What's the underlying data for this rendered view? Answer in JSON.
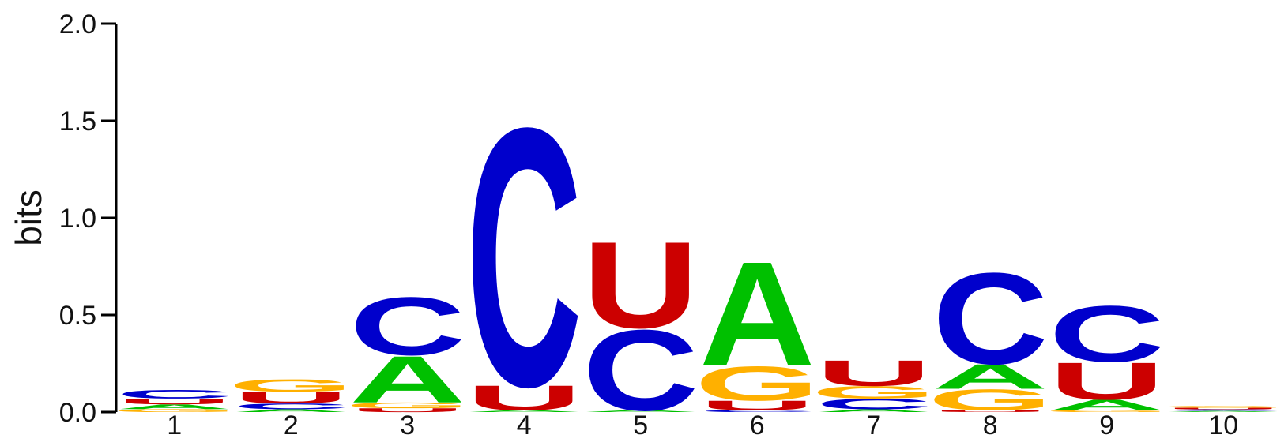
{
  "chart_data": {
    "type": "sequence-logo",
    "ylabel": "bits",
    "ylim": [
      0,
      2
    ],
    "yticks": [
      "0.0",
      "0.5",
      "1.0",
      "1.5",
      "2.0"
    ],
    "ytick_values": [
      0,
      0.5,
      1,
      1.5,
      2
    ],
    "alphabet_colors": {
      "A": "#00c000",
      "C": "#0000cc",
      "G": "#ffb000",
      "U": "#cc0000"
    },
    "positions": [
      {
        "label": "1",
        "stack": [
          {
            "letter": "G",
            "height": 0.015
          },
          {
            "letter": "A",
            "height": 0.025
          },
          {
            "letter": "U",
            "height": 0.03
          },
          {
            "letter": "C",
            "height": 0.045
          }
        ]
      },
      {
        "label": "2",
        "stack": [
          {
            "letter": "A",
            "height": 0.015
          },
          {
            "letter": "C",
            "height": 0.03
          },
          {
            "letter": "U",
            "height": 0.06
          },
          {
            "letter": "G",
            "height": 0.065
          }
        ]
      },
      {
        "label": "3",
        "stack": [
          {
            "letter": "U",
            "height": 0.02
          },
          {
            "letter": "G",
            "height": 0.03
          },
          {
            "letter": "A",
            "height": 0.245
          },
          {
            "letter": "C",
            "height": 0.305
          }
        ]
      },
      {
        "label": "4",
        "stack": [
          {
            "letter": "A",
            "height": 0.01
          },
          {
            "letter": "U",
            "height": 0.13
          },
          {
            "letter": "C",
            "height": 1.36
          }
        ]
      },
      {
        "label": "5",
        "stack": [
          {
            "letter": "A",
            "height": 0.01
          },
          {
            "letter": "C",
            "height": 0.425
          },
          {
            "letter": "U",
            "height": 0.455
          }
        ]
      },
      {
        "label": "6",
        "stack": [
          {
            "letter": "C",
            "height": 0.01
          },
          {
            "letter": "U",
            "height": 0.05
          },
          {
            "letter": "G",
            "height": 0.18
          },
          {
            "letter": "A",
            "height": 0.55
          }
        ]
      },
      {
        "label": "7",
        "stack": [
          {
            "letter": "A",
            "height": 0.015
          },
          {
            "letter": "C",
            "height": 0.055
          },
          {
            "letter": "G",
            "height": 0.065
          },
          {
            "letter": "U",
            "height": 0.135
          }
        ]
      },
      {
        "label": "8",
        "stack": [
          {
            "letter": "U",
            "height": 0.01
          },
          {
            "letter": "G",
            "height": 0.11
          },
          {
            "letter": "A",
            "height": 0.13
          },
          {
            "letter": "C",
            "height": 0.48
          }
        ]
      },
      {
        "label": "9",
        "stack": [
          {
            "letter": "G",
            "height": 0.01
          },
          {
            "letter": "A",
            "height": 0.055
          },
          {
            "letter": "U",
            "height": 0.195
          },
          {
            "letter": "C",
            "height": 0.295
          }
        ]
      },
      {
        "label": "10",
        "stack": [
          {
            "letter": "A",
            "height": 0.006
          },
          {
            "letter": "C",
            "height": 0.008
          },
          {
            "letter": "U",
            "height": 0.008
          },
          {
            "letter": "G",
            "height": 0.01
          }
        ]
      }
    ]
  }
}
